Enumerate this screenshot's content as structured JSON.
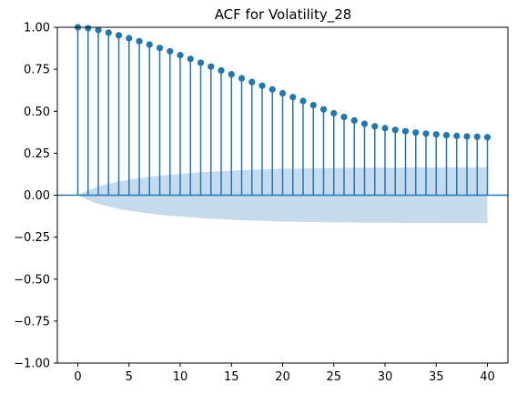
{
  "chart_data": {
    "type": "scatter",
    "subtype": "acf-stem",
    "title": "ACF for Volatility_28",
    "xlabel": "",
    "ylabel": "",
    "xlim": [
      -2,
      42
    ],
    "ylim": [
      -1.0,
      1.0
    ],
    "x_ticks": [
      0,
      5,
      10,
      15,
      20,
      25,
      30,
      35,
      40
    ],
    "x_tick_labels": [
      "0",
      "5",
      "10",
      "15",
      "20",
      "25",
      "30",
      "35",
      "40"
    ],
    "y_ticks": [
      1.0,
      0.75,
      0.5,
      0.25,
      0.0,
      -0.25,
      -0.5,
      -0.75,
      -1.0
    ],
    "y_tick_labels": [
      "1.00",
      "0.75",
      "0.50",
      "0.25",
      "0.00",
      "−0.25",
      "−0.50",
      "−0.75",
      "−1.00"
    ],
    "grid": false,
    "colors": {
      "stem": "#1f77b4",
      "band": "#aecbe6",
      "zero_line": "#1f77b4"
    },
    "lags": [
      0,
      1,
      2,
      3,
      4,
      5,
      6,
      7,
      8,
      9,
      10,
      11,
      12,
      13,
      14,
      15,
      16,
      17,
      18,
      19,
      20,
      21,
      22,
      23,
      24,
      25,
      26,
      27,
      28,
      29,
      30,
      31,
      32,
      33,
      34,
      35,
      36,
      37,
      38,
      39,
      40
    ],
    "acf": [
      1.0,
      0.995,
      0.984,
      0.968,
      0.952,
      0.935,
      0.917,
      0.897,
      0.877,
      0.857,
      0.834,
      0.812,
      0.789,
      0.766,
      0.743,
      0.72,
      0.696,
      0.674,
      0.652,
      0.63,
      0.607,
      0.584,
      0.561,
      0.536,
      0.511,
      0.488,
      0.466,
      0.445,
      0.425,
      0.41,
      0.399,
      0.389,
      0.381,
      0.373,
      0.367,
      0.362,
      0.357,
      0.353,
      0.35,
      0.348,
      0.345
    ],
    "confint_upper": [
      0.0,
      0.03,
      0.052,
      0.068,
      0.081,
      0.092,
      0.101,
      0.109,
      0.116,
      0.122,
      0.127,
      0.132,
      0.136,
      0.14,
      0.143,
      0.146,
      0.149,
      0.151,
      0.153,
      0.155,
      0.157,
      0.158,
      0.159,
      0.16,
      0.161,
      0.162,
      0.162,
      0.163,
      0.163,
      0.164,
      0.164,
      0.164,
      0.165,
      0.165,
      0.165,
      0.165,
      0.166,
      0.166,
      0.166,
      0.166,
      0.166
    ]
  }
}
